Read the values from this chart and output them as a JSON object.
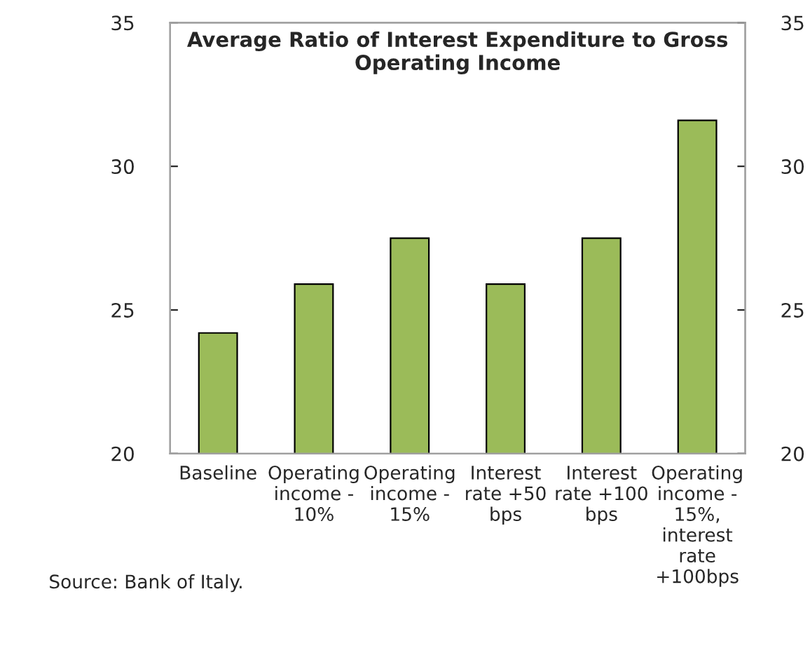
{
  "chart_data": {
    "type": "bar",
    "title": "Average Ratio of Interest Expenditure to Gross\nOperating Income",
    "categories": [
      "Baseline",
      "Operating\nincome -\n10%",
      "Operating\nincome -\n15%",
      "Interest\nrate +50\nbps",
      "Interest\nrate +100\nbps",
      "Operating\nincome -\n15%,\ninterest\nrate\n+100bps"
    ],
    "values": [
      24.2,
      25.9,
      27.5,
      25.9,
      27.5,
      31.6
    ],
    "color": "#9bbb59",
    "ylim": [
      20,
      35
    ],
    "yticks": [
      20,
      25,
      30,
      35
    ],
    "y2lim": [
      20,
      35
    ],
    "y2ticks": [
      20,
      25,
      30,
      35
    ],
    "grid": false,
    "annotations": [
      "Source: Bank of Italy."
    ]
  }
}
